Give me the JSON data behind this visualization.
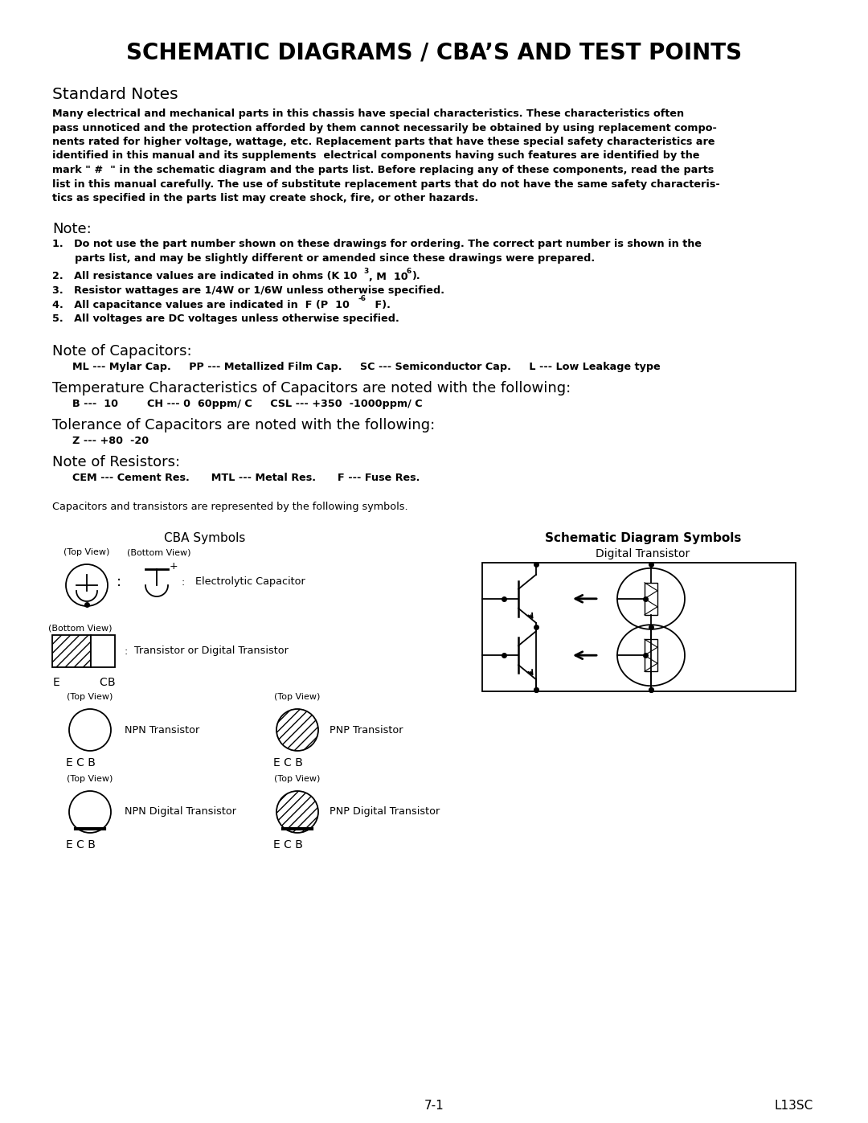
{
  "title": "SCHEMATIC DIAGRAMS / CBA’S AND TEST POINTS",
  "bg_color": "#ffffff",
  "text_color": "#000000",
  "page_number": "7-1",
  "page_code": "L13SC"
}
